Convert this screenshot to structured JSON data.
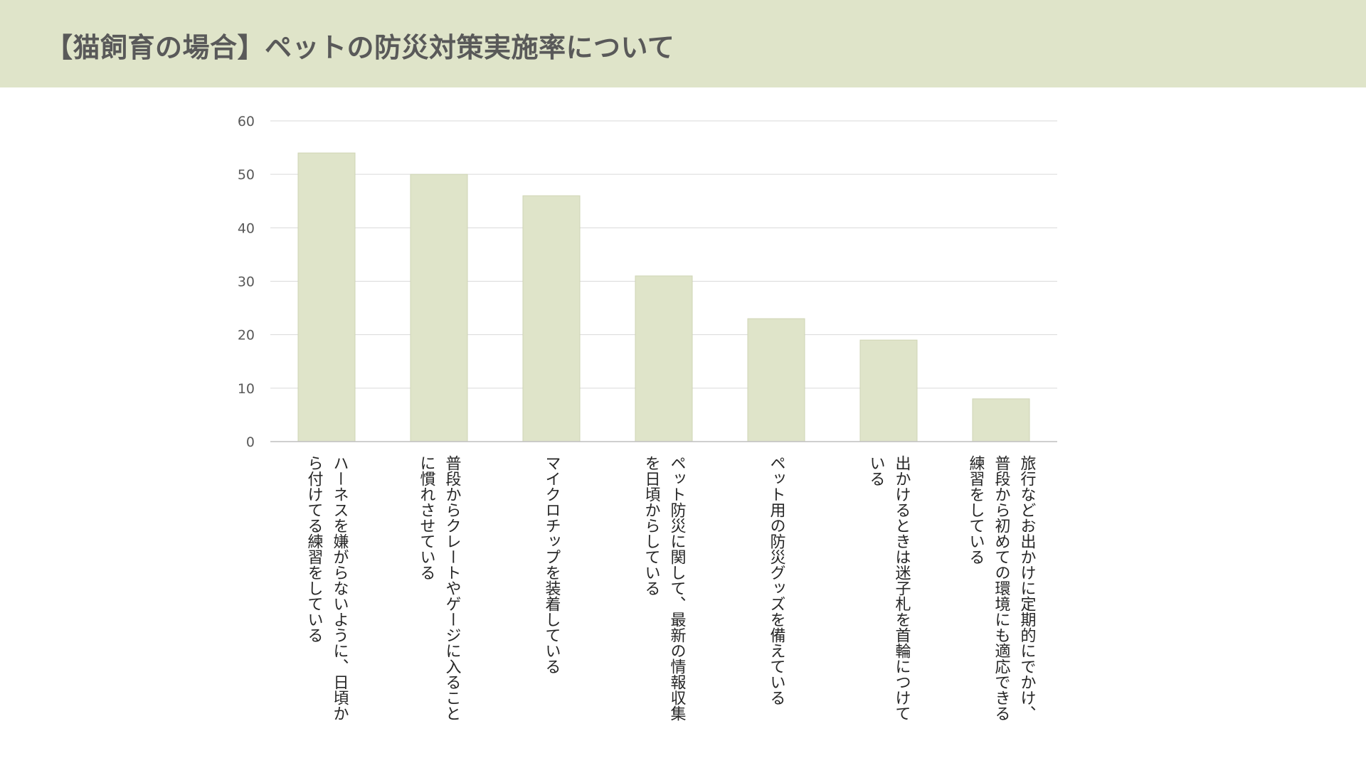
{
  "header": {
    "title": "【猫飼育の場合】ペットの防災対策実施率について"
  },
  "colors": {
    "header_band": "#dfe4c9",
    "bar_fill": "#dfe4c9",
    "gridline": "#d9d9d9",
    "text": "#595959"
  },
  "chart_data": {
    "type": "bar",
    "title": "",
    "xlabel": "",
    "ylabel": "",
    "ylim": [
      0,
      60
    ],
    "yticks": [
      0,
      10,
      20,
      30,
      40,
      50,
      60
    ],
    "grid": true,
    "categories": [
      [
        "ハーネスを嫌がらないように、日頃か",
        "ら付けてる練習をしている"
      ],
      [
        "普段からクレートやゲージに入ること",
        "に慣れさせている"
      ],
      [
        "マイクロチップを装着している"
      ],
      [
        "ペット防災に関して、最新の情報収集",
        "を日頃からしている"
      ],
      [
        "ペット用の防災グッズを備えている"
      ],
      [
        "出かけるときは迷子札を首輪につけて",
        "いる"
      ],
      [
        "旅行などお出かけに定期的にでかけ、",
        "普段から初めての環境にも適応できる",
        "練習をしている"
      ]
    ],
    "values": [
      54,
      50,
      46,
      31,
      23,
      19,
      8
    ]
  }
}
